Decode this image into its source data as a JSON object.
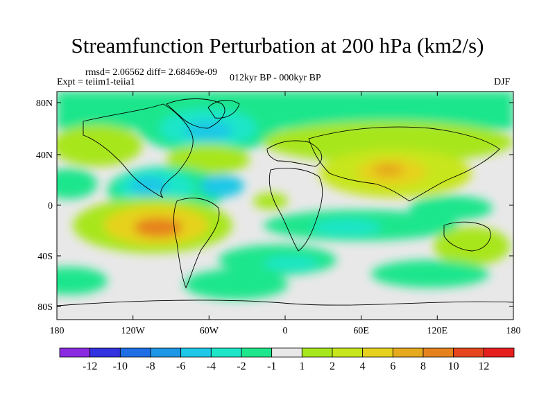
{
  "title": "Streamfunction Perturbation at 200 hPa (km2/s)",
  "stats_line": "rmsd= 2.06562 diff= 2.68469e-09",
  "experiment": "Expt = teiim1-teiia1",
  "comparison": "012kyr BP - 000kyr BP",
  "season": "DJF",
  "map": {
    "lat_ticks": [
      "80N",
      "40N",
      "0",
      "40S",
      "80S"
    ],
    "lon_ticks": [
      "180",
      "120W",
      "60W",
      "0",
      "60E",
      "120E",
      "180"
    ]
  },
  "colorbar": {
    "colors": [
      "#8a2be2",
      "#3232e0",
      "#1e6ee6",
      "#1e96e6",
      "#1ec8e6",
      "#1ee6c8",
      "#1ee68c",
      "#e8e8e8",
      "#a8e61e",
      "#c8e61e",
      "#e6d21e",
      "#e6aa1e",
      "#e6821e",
      "#e6461e",
      "#e61e1e"
    ],
    "labels": [
      "-12",
      "-10",
      "-8",
      "-6",
      "-4",
      "-2",
      "-1",
      "1",
      "2",
      "4",
      "6",
      "8",
      "10",
      "12"
    ]
  }
}
